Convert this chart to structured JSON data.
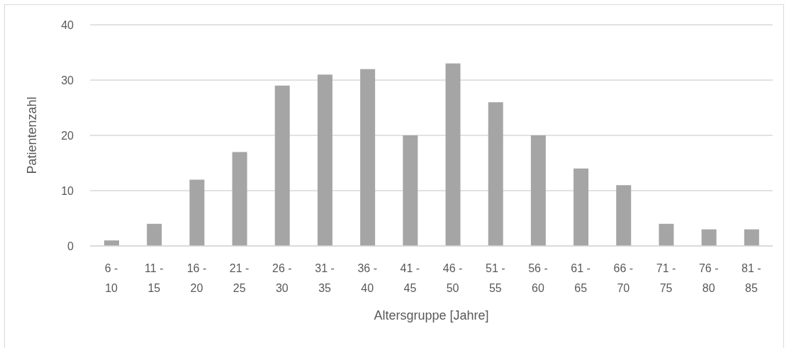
{
  "chart_data": {
    "type": "bar",
    "xlabel": "Altersgruppe [Jahre]",
    "ylabel": "Patientenzahl",
    "categories": [
      "6 - 10",
      "11 - 15",
      "16 - 20",
      "21 - 25",
      "26 - 30",
      "31 - 35",
      "36 - 40",
      "41 - 45",
      "46 - 50",
      "51 - 55",
      "56 - 60",
      "61 - 65",
      "66 - 70",
      "71 - 75",
      "76 - 80",
      "81 - 85"
    ],
    "values": [
      1,
      4,
      12,
      17,
      29,
      31,
      32,
      20,
      33,
      26,
      20,
      14,
      11,
      4,
      3,
      3
    ],
    "color": "#a5a5a5",
    "ylim": [
      0,
      40
    ],
    "yticks": [
      0,
      10,
      20,
      30,
      40
    ],
    "grid": "y"
  }
}
